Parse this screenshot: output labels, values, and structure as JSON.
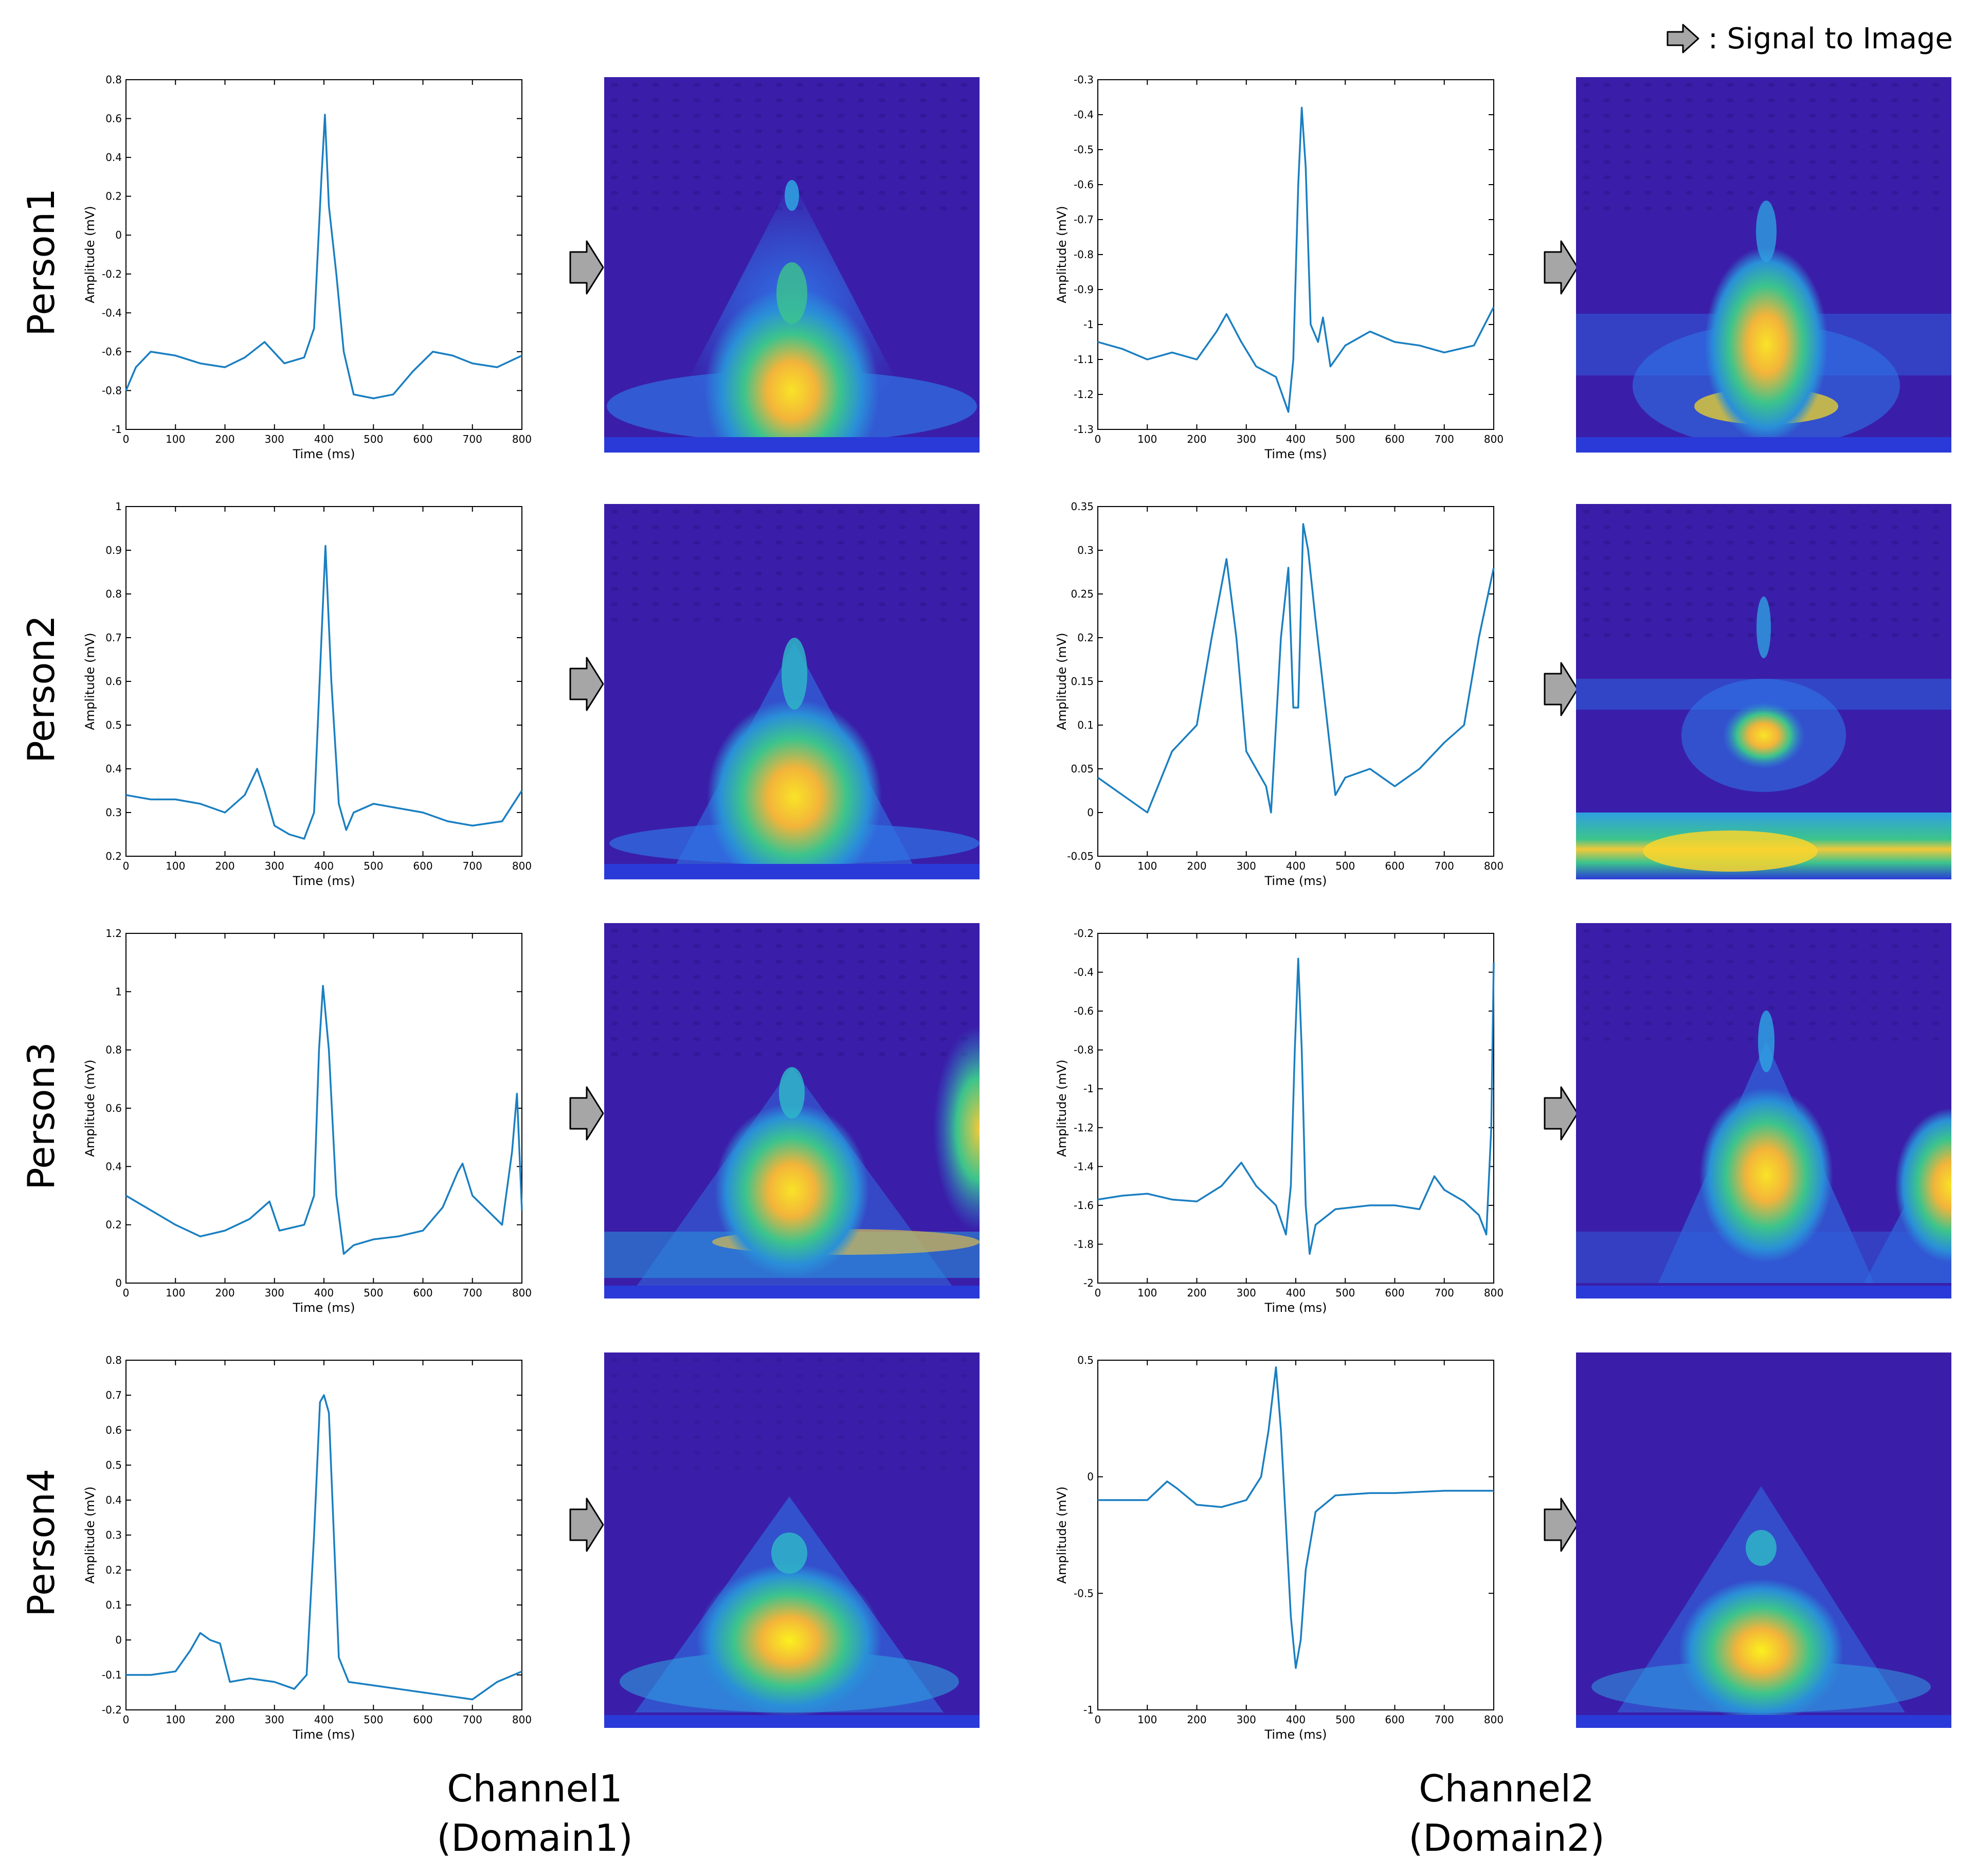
{
  "legend": {
    "text": ": Signal to Image",
    "icon": "arrow-right-icon"
  },
  "colors": {
    "signal": "#1a7fc1",
    "arrow_fill": "#a6a6a6",
    "arrow_stroke": "#000000",
    "scalogram_low": "#3a1ea9",
    "scalogram_mid": "#2dbd9a",
    "scalogram_high": "#f9e327"
  },
  "columns": [
    {
      "line1": "Channel1",
      "line2": "(Domain1)"
    },
    {
      "line1": "Channel2",
      "line2": "(Domain2)"
    }
  ],
  "persons": [
    "Person1",
    "Person2",
    "Person3",
    "Person4"
  ],
  "chart_data": [
    {
      "type": "line",
      "person": "Person1",
      "channel": "Channel1",
      "xlabel": "Time (ms)",
      "ylabel": "Amplitude (mV)",
      "xlim": [
        0,
        800
      ],
      "ylim": [
        -1,
        0.8
      ],
      "xticks": [
        "0",
        "100",
        "200",
        "300",
        "400",
        "500",
        "600",
        "700",
        "800"
      ],
      "yticks": [
        "-1",
        "-0.8",
        "-0.6",
        "-0.4",
        "-0.2",
        "0",
        "0.2",
        "0.4",
        "0.6",
        "0.8"
      ],
      "points": [
        [
          0,
          -0.8
        ],
        [
          20,
          -0.68
        ],
        [
          50,
          -0.6
        ],
        [
          100,
          -0.62
        ],
        [
          150,
          -0.66
        ],
        [
          200,
          -0.68
        ],
        [
          240,
          -0.63
        ],
        [
          280,
          -0.55
        ],
        [
          320,
          -0.66
        ],
        [
          360,
          -0.63
        ],
        [
          380,
          -0.48
        ],
        [
          395,
          0.3
        ],
        [
          402,
          0.62
        ],
        [
          410,
          0.15
        ],
        [
          425,
          -0.2
        ],
        [
          440,
          -0.6
        ],
        [
          460,
          -0.82
        ],
        [
          500,
          -0.84
        ],
        [
          540,
          -0.82
        ],
        [
          580,
          -0.7
        ],
        [
          620,
          -0.6
        ],
        [
          660,
          -0.62
        ],
        [
          700,
          -0.66
        ],
        [
          750,
          -0.68
        ],
        [
          800,
          -0.62
        ]
      ]
    },
    {
      "type": "line",
      "person": "Person1",
      "channel": "Channel2",
      "xlabel": "Time (ms)",
      "ylabel": "Amplitude (mV)",
      "xlim": [
        0,
        800
      ],
      "ylim": [
        -1.3,
        -0.3
      ],
      "xticks": [
        "0",
        "100",
        "200",
        "300",
        "400",
        "500",
        "600",
        "700",
        "800"
      ],
      "yticks": [
        "-1.3",
        "-1.2",
        "-1.1",
        "-1",
        "-0.9",
        "-0.8",
        "-0.7",
        "-0.6",
        "-0.5",
        "-0.4",
        "-0.3"
      ],
      "points": [
        [
          0,
          -1.05
        ],
        [
          50,
          -1.07
        ],
        [
          100,
          -1.1
        ],
        [
          150,
          -1.08
        ],
        [
          200,
          -1.1
        ],
        [
          240,
          -1.02
        ],
        [
          260,
          -0.97
        ],
        [
          290,
          -1.05
        ],
        [
          320,
          -1.12
        ],
        [
          360,
          -1.15
        ],
        [
          385,
          -1.25
        ],
        [
          395,
          -1.1
        ],
        [
          405,
          -0.6
        ],
        [
          412,
          -0.38
        ],
        [
          420,
          -0.55
        ],
        [
          430,
          -1.0
        ],
        [
          445,
          -1.05
        ],
        [
          455,
          -0.98
        ],
        [
          470,
          -1.12
        ],
        [
          500,
          -1.06
        ],
        [
          550,
          -1.02
        ],
        [
          600,
          -1.05
        ],
        [
          650,
          -1.06
        ],
        [
          700,
          -1.08
        ],
        [
          760,
          -1.06
        ],
        [
          800,
          -0.95
        ]
      ]
    },
    {
      "type": "line",
      "person": "Person2",
      "channel": "Channel1",
      "xlabel": "Time (ms)",
      "ylabel": "Amplitude (mV)",
      "xlim": [
        0,
        800
      ],
      "ylim": [
        0.2,
        1
      ],
      "xticks": [
        "0",
        "100",
        "200",
        "300",
        "400",
        "500",
        "600",
        "700",
        "800"
      ],
      "yticks": [
        "0.2",
        "0.3",
        "0.4",
        "0.5",
        "0.6",
        "0.7",
        "0.8",
        "0.9",
        "1"
      ],
      "points": [
        [
          0,
          0.34
        ],
        [
          50,
          0.33
        ],
        [
          100,
          0.33
        ],
        [
          150,
          0.32
        ],
        [
          200,
          0.3
        ],
        [
          240,
          0.34
        ],
        [
          265,
          0.4
        ],
        [
          280,
          0.35
        ],
        [
          300,
          0.27
        ],
        [
          330,
          0.25
        ],
        [
          360,
          0.24
        ],
        [
          380,
          0.3
        ],
        [
          395,
          0.7
        ],
        [
          403,
          0.91
        ],
        [
          415,
          0.6
        ],
        [
          430,
          0.32
        ],
        [
          445,
          0.26
        ],
        [
          460,
          0.3
        ],
        [
          500,
          0.32
        ],
        [
          550,
          0.31
        ],
        [
          600,
          0.3
        ],
        [
          650,
          0.28
        ],
        [
          700,
          0.27
        ],
        [
          760,
          0.28
        ],
        [
          800,
          0.35
        ]
      ]
    },
    {
      "type": "line",
      "person": "Person2",
      "channel": "Channel2",
      "xlabel": "Time (ms)",
      "ylabel": "Amplitude (mV)",
      "xlim": [
        0,
        800
      ],
      "ylim": [
        -0.05,
        0.35
      ],
      "xticks": [
        "0",
        "100",
        "200",
        "300",
        "400",
        "500",
        "600",
        "700",
        "800"
      ],
      "yticks": [
        "-0.05",
        "0",
        "0.05",
        "0.1",
        "0.15",
        "0.2",
        "0.25",
        "0.3",
        "0.35"
      ],
      "points": [
        [
          0,
          0.04
        ],
        [
          50,
          0.02
        ],
        [
          100,
          0.0
        ],
        [
          150,
          0.07
        ],
        [
          200,
          0.1
        ],
        [
          230,
          0.2
        ],
        [
          260,
          0.29
        ],
        [
          280,
          0.2
        ],
        [
          300,
          0.07
        ],
        [
          320,
          0.05
        ],
        [
          340,
          0.03
        ],
        [
          350,
          0.0
        ],
        [
          370,
          0.2
        ],
        [
          385,
          0.28
        ],
        [
          395,
          0.12
        ],
        [
          405,
          0.12
        ],
        [
          415,
          0.33
        ],
        [
          425,
          0.3
        ],
        [
          440,
          0.22
        ],
        [
          460,
          0.12
        ],
        [
          480,
          0.02
        ],
        [
          500,
          0.04
        ],
        [
          550,
          0.05
        ],
        [
          600,
          0.03
        ],
        [
          650,
          0.05
        ],
        [
          700,
          0.08
        ],
        [
          740,
          0.1
        ],
        [
          770,
          0.2
        ],
        [
          800,
          0.28
        ]
      ]
    },
    {
      "type": "line",
      "person": "Person3",
      "channel": "Channel1",
      "xlabel": "Time (ms)",
      "ylabel": "Amplitude (mV)",
      "xlim": [
        0,
        800
      ],
      "ylim": [
        0,
        1.2
      ],
      "xticks": [
        "0",
        "100",
        "200",
        "300",
        "400",
        "500",
        "600",
        "700",
        "800"
      ],
      "yticks": [
        "0",
        "0.2",
        "0.4",
        "0.6",
        "0.8",
        "1",
        "1.2"
      ],
      "points": [
        [
          0,
          0.3
        ],
        [
          50,
          0.25
        ],
        [
          100,
          0.2
        ],
        [
          150,
          0.16
        ],
        [
          200,
          0.18
        ],
        [
          250,
          0.22
        ],
        [
          290,
          0.28
        ],
        [
          310,
          0.18
        ],
        [
          360,
          0.2
        ],
        [
          380,
          0.3
        ],
        [
          390,
          0.8
        ],
        [
          398,
          1.02
        ],
        [
          410,
          0.8
        ],
        [
          425,
          0.3
        ],
        [
          440,
          0.1
        ],
        [
          460,
          0.13
        ],
        [
          500,
          0.15
        ],
        [
          550,
          0.16
        ],
        [
          600,
          0.18
        ],
        [
          640,
          0.26
        ],
        [
          670,
          0.38
        ],
        [
          680,
          0.41
        ],
        [
          700,
          0.3
        ],
        [
          730,
          0.25
        ],
        [
          760,
          0.2
        ],
        [
          780,
          0.45
        ],
        [
          790,
          0.65
        ],
        [
          800,
          0.25
        ]
      ]
    },
    {
      "type": "line",
      "person": "Person3",
      "channel": "Channel2",
      "xlabel": "Time (ms)",
      "ylabel": "Amplitude (mV)",
      "xlim": [
        0,
        800
      ],
      "ylim": [
        -2,
        -0.2
      ],
      "xticks": [
        "0",
        "100",
        "200",
        "300",
        "400",
        "500",
        "600",
        "700",
        "800"
      ],
      "yticks": [
        "-2",
        "-1.8",
        "-1.6",
        "-1.4",
        "-1.2",
        "-1",
        "-0.8",
        "-0.6",
        "-0.4",
        "-0.2"
      ],
      "points": [
        [
          0,
          -1.57
        ],
        [
          50,
          -1.55
        ],
        [
          100,
          -1.54
        ],
        [
          150,
          -1.57
        ],
        [
          200,
          -1.58
        ],
        [
          250,
          -1.5
        ],
        [
          290,
          -1.38
        ],
        [
          320,
          -1.5
        ],
        [
          360,
          -1.6
        ],
        [
          380,
          -1.75
        ],
        [
          390,
          -1.5
        ],
        [
          398,
          -0.8
        ],
        [
          405,
          -0.33
        ],
        [
          412,
          -0.8
        ],
        [
          420,
          -1.6
        ],
        [
          428,
          -1.85
        ],
        [
          440,
          -1.7
        ],
        [
          480,
          -1.62
        ],
        [
          550,
          -1.6
        ],
        [
          600,
          -1.6
        ],
        [
          650,
          -1.62
        ],
        [
          680,
          -1.45
        ],
        [
          700,
          -1.52
        ],
        [
          740,
          -1.58
        ],
        [
          770,
          -1.65
        ],
        [
          785,
          -1.75
        ],
        [
          795,
          -1.2
        ],
        [
          800,
          -0.35
        ]
      ]
    },
    {
      "type": "line",
      "person": "Person4",
      "channel": "Channel1",
      "xlabel": "Time (ms)",
      "ylabel": "Amplitude (mV)",
      "xlim": [
        0,
        800
      ],
      "ylim": [
        -0.2,
        0.8
      ],
      "xticks": [
        "0",
        "100",
        "200",
        "300",
        "400",
        "500",
        "600",
        "700",
        "800"
      ],
      "yticks": [
        "-0.2",
        "-0.1",
        "0",
        "0.1",
        "0.2",
        "0.3",
        "0.4",
        "0.5",
        "0.6",
        "0.7",
        "0.8"
      ],
      "points": [
        [
          0,
          -0.1
        ],
        [
          50,
          -0.1
        ],
        [
          100,
          -0.09
        ],
        [
          130,
          -0.03
        ],
        [
          150,
          0.02
        ],
        [
          170,
          0.0
        ],
        [
          190,
          -0.01
        ],
        [
          210,
          -0.12
        ],
        [
          250,
          -0.11
        ],
        [
          300,
          -0.12
        ],
        [
          340,
          -0.14
        ],
        [
          365,
          -0.1
        ],
        [
          380,
          0.3
        ],
        [
          392,
          0.68
        ],
        [
          400,
          0.7
        ],
        [
          410,
          0.65
        ],
        [
          420,
          0.3
        ],
        [
          430,
          -0.05
        ],
        [
          450,
          -0.12
        ],
        [
          500,
          -0.13
        ],
        [
          550,
          -0.14
        ],
        [
          600,
          -0.15
        ],
        [
          650,
          -0.16
        ],
        [
          700,
          -0.17
        ],
        [
          750,
          -0.12
        ],
        [
          800,
          -0.09
        ]
      ]
    },
    {
      "type": "line",
      "person": "Person4",
      "channel": "Channel2",
      "xlabel": "Time (ms)",
      "ylabel": "Amplitude (mV)",
      "xlim": [
        0,
        800
      ],
      "ylim": [
        -1,
        0.5
      ],
      "xticks": [
        "0",
        "100",
        "200",
        "300",
        "400",
        "500",
        "600",
        "700",
        "800"
      ],
      "yticks": [
        "-1",
        "-0.5",
        "0",
        "0.5"
      ],
      "points": [
        [
          0,
          -0.1
        ],
        [
          50,
          -0.1
        ],
        [
          100,
          -0.1
        ],
        [
          140,
          -0.02
        ],
        [
          160,
          -0.05
        ],
        [
          200,
          -0.12
        ],
        [
          250,
          -0.13
        ],
        [
          300,
          -0.1
        ],
        [
          330,
          0.0
        ],
        [
          345,
          0.2
        ],
        [
          360,
          0.47
        ],
        [
          370,
          0.2
        ],
        [
          380,
          -0.2
        ],
        [
          390,
          -0.6
        ],
        [
          400,
          -0.82
        ],
        [
          410,
          -0.7
        ],
        [
          420,
          -0.4
        ],
        [
          440,
          -0.15
        ],
        [
          480,
          -0.08
        ],
        [
          550,
          -0.07
        ],
        [
          600,
          -0.07
        ],
        [
          700,
          -0.06
        ],
        [
          800,
          -0.06
        ]
      ]
    }
  ]
}
